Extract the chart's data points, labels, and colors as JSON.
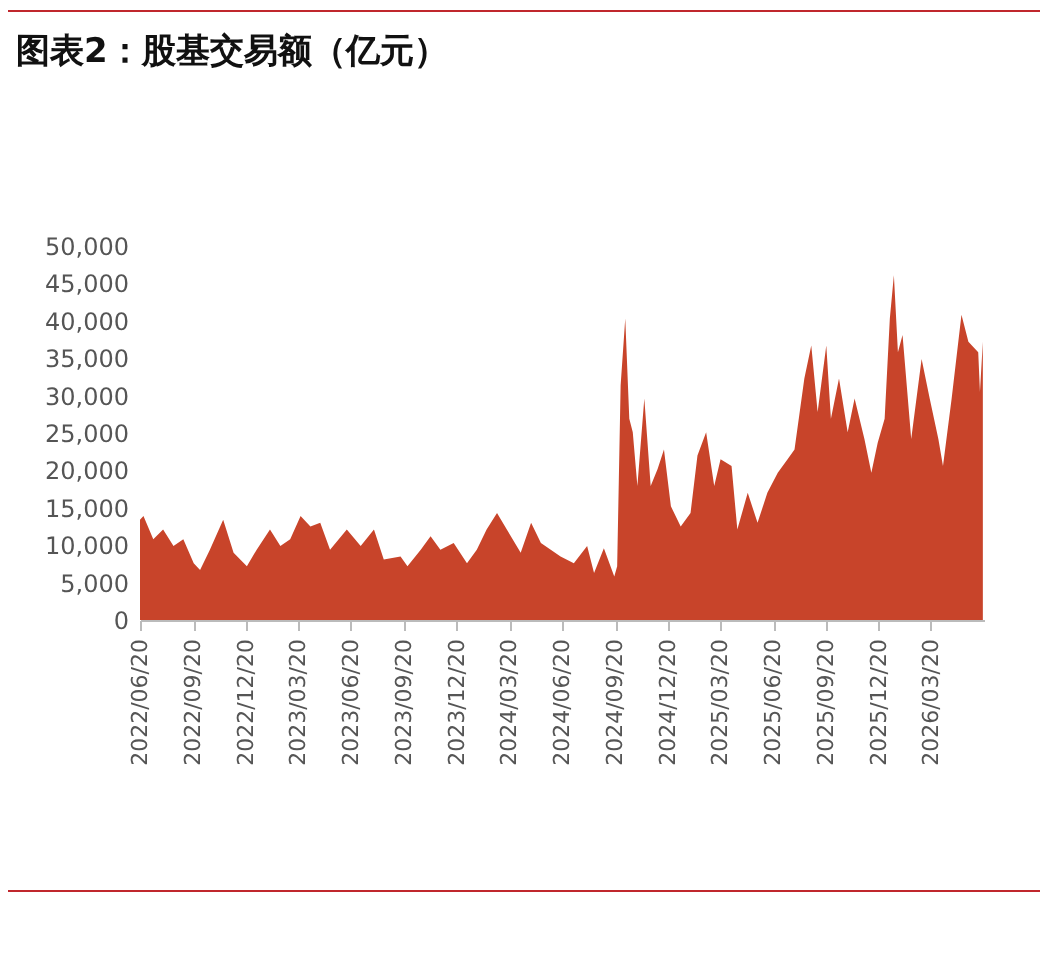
{
  "chart_data": {
    "type": "area",
    "title": "图表2：股基交易额（亿元）",
    "color": "#c8442a",
    "grid": false,
    "legend": false,
    "x": [
      "2022-06-20",
      "2022-06-26",
      "2022-07-13",
      "2022-07-30",
      "2022-08-17",
      "2022-09-03",
      "2022-09-21",
      "2022-10-02",
      "2022-10-19",
      "2022-11-11",
      "2022-11-29",
      "2022-12-22",
      "2023-01-08",
      "2023-01-31",
      "2023-02-18",
      "2023-03-07",
      "2023-03-25",
      "2023-04-11",
      "2023-04-28",
      "2023-05-15",
      "2023-06-13",
      "2023-07-07",
      "2023-07-30",
      "2023-08-16",
      "2023-09-14",
      "2023-09-26",
      "2023-10-19",
      "2023-11-05",
      "2023-11-22",
      "2023-12-15",
      "2024-01-07",
      "2024-01-24",
      "2024-02-10",
      "2024-02-28",
      "2024-03-16",
      "2024-04-09",
      "2024-04-27",
      "2024-05-14",
      "2024-06-17",
      "2024-07-10",
      "2024-08-02",
      "2024-08-14",
      "2024-08-31",
      "2024-09-18",
      "2024-09-23",
      "2024-09-29",
      "2024-10-07",
      "2024-10-14",
      "2024-10-20",
      "2024-10-28",
      "2024-11-09",
      "2024-11-20",
      "2024-12-02",
      "2024-12-13",
      "2024-12-25",
      "2025-01-11",
      "2025-01-28",
      "2025-02-09",
      "2025-02-24",
      "2025-03-10",
      "2025-03-21",
      "2025-04-09",
      "2025-04-19",
      "2025-05-07",
      "2025-05-24",
      "2025-06-10",
      "2025-06-28",
      "2025-07-15",
      "2025-07-27",
      "2025-08-13",
      "2025-08-25",
      "2025-09-05",
      "2025-09-20",
      "2025-09-28",
      "2025-10-12",
      "2025-10-27",
      "2025-11-08",
      "2025-11-25",
      "2025-12-07",
      "2025-12-18",
      "2025-12-30",
      "2026-01-08",
      "2026-01-15",
      "2026-01-22",
      "2026-01-30",
      "2026-02-14",
      "2026-03-04",
      "2026-03-18",
      "2026-04-02",
      "2026-04-10",
      "2026-04-25",
      "2026-05-12",
      "2026-05-24",
      "2026-06-10",
      "2026-06-13",
      "2026-06-18"
    ],
    "values": [
      13400,
      13900,
      10800,
      12100,
      9900,
      10800,
      7600,
      6700,
      9400,
      13400,
      9000,
      7200,
      9400,
      12100,
      9900,
      10800,
      13900,
      12500,
      13000,
      9400,
      12100,
      9900,
      12100,
      8100,
      8500,
      7200,
      9400,
      11200,
      9400,
      10300,
      7600,
      9400,
      12100,
      14300,
      12100,
      9000,
      13000,
      10300,
      8500,
      7600,
      9900,
      6300,
      9600,
      5800,
      7200,
      31400,
      40300,
      26900,
      25100,
      17900,
      29600,
      17900,
      20200,
      22800,
      15200,
      12500,
      14300,
      22000,
      25100,
      17900,
      21500,
      20600,
      12100,
      17000,
      13000,
      17000,
      19700,
      21500,
      22800,
      32300,
      36700,
      27800,
      36700,
      26900,
      32300,
      25100,
      29600,
      24200,
      19700,
      23700,
      26900,
      40300,
      46100,
      35800,
      38100,
      24200,
      34900,
      29600,
      24200,
      20600,
      29600,
      40800,
      37200,
      35800,
      30500,
      37200
    ],
    "xlim": [
      "2022-06-20",
      "2026-06-20"
    ],
    "xticks": [
      {
        "value": "2022-06-20",
        "label": "2022/06/20"
      },
      {
        "value": "2022-09-20",
        "label": "2022/09/20"
      },
      {
        "value": "2022-12-20",
        "label": "2022/12/20"
      },
      {
        "value": "2023-03-20",
        "label": "2023/03/20"
      },
      {
        "value": "2023-06-20",
        "label": "2023/06/20"
      },
      {
        "value": "2023-09-20",
        "label": "2023/09/20"
      },
      {
        "value": "2023-12-20",
        "label": "2023/12/20"
      },
      {
        "value": "2024-03-20",
        "label": "2024/03/20"
      },
      {
        "value": "2024-06-20",
        "label": "2024/06/20"
      },
      {
        "value": "2024-09-20",
        "label": "2024/09/20"
      },
      {
        "value": "2024-12-20",
        "label": "2024/12/20"
      },
      {
        "value": "2025-03-20",
        "label": "2025/03/20"
      },
      {
        "value": "2025-06-20",
        "label": "2025/06/20"
      },
      {
        "value": "2025-09-20",
        "label": "2025/09/20"
      },
      {
        "value": "2025-12-20",
        "label": "2025/12/20"
      },
      {
        "value": "2026-03-20",
        "label": "2026/03/20"
      }
    ],
    "ylim": [
      0,
      50000
    ],
    "yticks": [
      {
        "value": 0,
        "label": "0"
      },
      {
        "value": 5000,
        "label": "5,000"
      },
      {
        "value": 10000,
        "label": "10,000"
      },
      {
        "value": 15000,
        "label": "15,000"
      },
      {
        "value": 20000,
        "label": "20,000"
      },
      {
        "value": 25000,
        "label": "25,000"
      },
      {
        "value": 30000,
        "label": "30,000"
      },
      {
        "value": 35000,
        "label": "35,000"
      },
      {
        "value": 40000,
        "label": "40,000"
      },
      {
        "value": 45000,
        "label": "45,000"
      },
      {
        "value": 50000,
        "label": "50,000"
      }
    ]
  }
}
